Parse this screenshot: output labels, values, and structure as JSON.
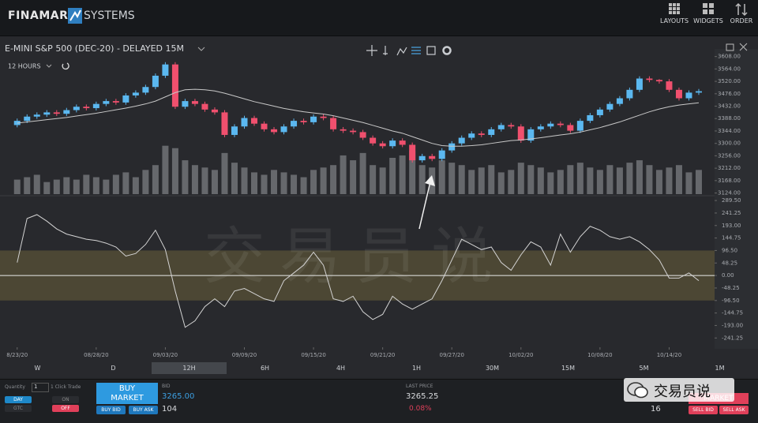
{
  "header": {
    "brand": "FINAMARK",
    "brand2": "SYSTEMS",
    "menu": [
      "LAYOUTS",
      "WIDGETS",
      "ORDER"
    ]
  },
  "chart_header": {
    "interval": "12 HOURS"
  },
  "watermark": "交易员说",
  "chart_data": [
    {
      "type": "candlestick",
      "title": "E-MINI S&P 500 (DEC-20) - DELAYED 15M",
      "up_color": "#5bb8f0",
      "down_color": "#f0506e",
      "volume_color": "#66686c",
      "ma_color": "#c8c8c8",
      "xlim": [
        -0.3,
        70.6
      ],
      "ylim": [
        3120,
        3635
      ],
      "vlim": [
        0,
        300
      ],
      "yticks": [
        {
          "value": 3608,
          "label": "3608.00"
        },
        {
          "value": 3564,
          "label": "3564.00"
        },
        {
          "value": 3520,
          "label": "3520.00"
        },
        {
          "value": 3476,
          "label": "3476.00"
        },
        {
          "value": 3432,
          "label": "3432.00"
        },
        {
          "value": 3388,
          "label": "3388.00"
        },
        {
          "value": 3344,
          "label": "3344.00"
        },
        {
          "value": 3300,
          "label": "3300.00"
        },
        {
          "value": 3256,
          "label": "3256.00"
        },
        {
          "value": 3212,
          "label": "3212.00"
        },
        {
          "value": 3168,
          "label": "3168.00"
        },
        {
          "value": 3124,
          "label": "3124.00"
        }
      ],
      "open": [
        3365,
        3380,
        3395,
        3402,
        3410,
        3405,
        3418,
        3430,
        3425,
        3440,
        3450,
        3445,
        3470,
        3480,
        3500,
        3540,
        3580,
        3430,
        3450,
        3440,
        3420,
        3410,
        3330,
        3360,
        3390,
        3370,
        3350,
        3340,
        3360,
        3380,
        3375,
        3395,
        3390,
        3350,
        3345,
        3340,
        3320,
        3300,
        3290,
        3310,
        3295,
        3240,
        3255,
        3245,
        3275,
        3300,
        3320,
        3335,
        3330,
        3350,
        3365,
        3360,
        3310,
        3350,
        3360,
        3370,
        3365,
        3345,
        3380,
        3400,
        3420,
        3440,
        3460,
        3490,
        3530,
        3525,
        3520,
        3490,
        3460,
        3480
      ],
      "high": [
        3388,
        3403,
        3410,
        3418,
        3418,
        3426,
        3438,
        3438,
        3448,
        3458,
        3458,
        3478,
        3488,
        3508,
        3548,
        3588,
        3588,
        3458,
        3458,
        3448,
        3428,
        3418,
        3368,
        3398,
        3398,
        3378,
        3358,
        3368,
        3388,
        3388,
        3403,
        3403,
        3398,
        3358,
        3353,
        3348,
        3328,
        3308,
        3318,
        3318,
        3303,
        3263,
        3263,
        3283,
        3308,
        3328,
        3343,
        3343,
        3358,
        3373,
        3373,
        3368,
        3358,
        3368,
        3378,
        3378,
        3373,
        3388,
        3408,
        3428,
        3448,
        3468,
        3498,
        3538,
        3538,
        3528,
        3528,
        3498,
        3488,
        3493
      ],
      "low": [
        3357,
        3372,
        3387,
        3394,
        3397,
        3397,
        3410,
        3417,
        3417,
        3432,
        3437,
        3437,
        3462,
        3472,
        3492,
        3532,
        3422,
        3422,
        3432,
        3412,
        3402,
        3322,
        3322,
        3352,
        3362,
        3342,
        3332,
        3332,
        3352,
        3367,
        3367,
        3382,
        3342,
        3337,
        3332,
        3312,
        3292,
        3282,
        3282,
        3287,
        3232,
        3232,
        3237,
        3237,
        3267,
        3292,
        3312,
        3322,
        3322,
        3342,
        3352,
        3302,
        3302,
        3342,
        3352,
        3357,
        3337,
        3337,
        3372,
        3392,
        3412,
        3432,
        3452,
        3482,
        3517,
        3512,
        3482,
        3452,
        3452,
        3472
      ],
      "close": [
        3380,
        3395,
        3402,
        3410,
        3405,
        3418,
        3430,
        3425,
        3440,
        3450,
        3445,
        3470,
        3480,
        3500,
        3540,
        3580,
        3430,
        3450,
        3440,
        3420,
        3410,
        3330,
        3360,
        3390,
        3370,
        3350,
        3340,
        3360,
        3380,
        3375,
        3395,
        3390,
        3350,
        3345,
        3340,
        3320,
        3300,
        3290,
        3310,
        3295,
        3240,
        3255,
        3245,
        3275,
        3300,
        3320,
        3335,
        3330,
        3350,
        3365,
        3360,
        3310,
        3350,
        3360,
        3370,
        3365,
        3345,
        3380,
        3400,
        3420,
        3440,
        3460,
        3490,
        3530,
        3525,
        3520,
        3490,
        3460,
        3480,
        3485
      ],
      "volume": [
        30,
        35,
        40,
        25,
        30,
        35,
        30,
        40,
        35,
        30,
        40,
        45,
        35,
        50,
        60,
        100,
        95,
        70,
        60,
        55,
        50,
        85,
        65,
        55,
        45,
        40,
        50,
        45,
        40,
        35,
        50,
        55,
        60,
        80,
        70,
        85,
        60,
        55,
        75,
        80,
        90,
        60,
        55,
        70,
        65,
        60,
        50,
        55,
        60,
        45,
        50,
        65,
        60,
        55,
        45,
        50,
        60,
        65,
        55,
        50,
        60,
        55,
        65,
        70,
        60,
        50,
        55,
        60,
        45,
        50
      ],
      "ma": [
        3372,
        3376,
        3380,
        3384,
        3388,
        3392,
        3397,
        3402,
        3407,
        3413,
        3419,
        3425,
        3432,
        3440,
        3450,
        3465,
        3480,
        3490,
        3492,
        3490,
        3486,
        3478,
        3468,
        3458,
        3448,
        3440,
        3432,
        3424,
        3418,
        3412,
        3408,
        3404,
        3398,
        3390,
        3382,
        3374,
        3364,
        3354,
        3344,
        3336,
        3324,
        3312,
        3300,
        3292,
        3290,
        3290,
        3292,
        3295,
        3300,
        3305,
        3310,
        3312,
        3316,
        3320,
        3325,
        3330,
        3334,
        3340,
        3348,
        3356,
        3366,
        3376,
        3388,
        3400,
        3412,
        3422,
        3430,
        3436,
        3440,
        3444
      ]
    },
    {
      "type": "line",
      "color": "#d4d4d4",
      "band_color": "#5b5438",
      "baseline_color": "#e8e8e8",
      "xlim": [
        -0.3,
        70.6
      ],
      "ylim": [
        -277,
        302
      ],
      "band": [
        -96.5,
        96.5
      ],
      "baseline": 0,
      "yticks": [
        {
          "value": 289.5,
          "label": "289.50"
        },
        241.25,
        {
          "value": 193,
          "label": "193.00"
        },
        144.75,
        {
          "value": 96.5,
          "label": "96.50"
        },
        48.25,
        {
          "value": 0,
          "label": "0.00"
        },
        -48.25,
        {
          "value": -96.5,
          "label": "-96.50"
        },
        -144.75,
        {
          "value": -193,
          "label": "-193.00"
        },
        -241.25
      ],
      "xticks": [
        {
          "value": 0,
          "label": "8/23/20"
        },
        {
          "value": 8,
          "label": "08/28/20"
        },
        {
          "value": 15,
          "label": "09/03/20"
        },
        {
          "value": 23,
          "label": "09/09/20"
        },
        {
          "value": 30,
          "label": "09/15/20"
        },
        {
          "value": 37,
          "label": "09/21/20"
        },
        {
          "value": 44,
          "label": "09/27/20"
        },
        {
          "value": 51,
          "label": "10/02/20"
        },
        {
          "value": 59,
          "label": "10/08/20"
        },
        {
          "value": 66,
          "label": "10/14/20"
        }
      ],
      "values": [
        50,
        220,
        235,
        210,
        180,
        160,
        150,
        140,
        135,
        125,
        110,
        75,
        85,
        120,
        175,
        100,
        -60,
        -200,
        -175,
        -120,
        -90,
        -120,
        -60,
        -50,
        -70,
        -90,
        -100,
        -20,
        10,
        40,
        90,
        40,
        -90,
        -100,
        -80,
        -140,
        -170,
        -150,
        -80,
        -110,
        -130,
        -110,
        -90,
        -20,
        60,
        140,
        120,
        100,
        110,
        50,
        20,
        80,
        130,
        110,
        40,
        160,
        90,
        150,
        190,
        175,
        150,
        140,
        150,
        130,
        100,
        60,
        -10,
        -10,
        10,
        -20
      ]
    }
  ],
  "timeframes": {
    "items": [
      "W",
      "D",
      "12H",
      "6H",
      "4H",
      "1H",
      "30M",
      "15M",
      "5M",
      "1M"
    ],
    "selected": "12H"
  },
  "order_panel": {
    "quantity_label": "Quantity",
    "quantity": "1",
    "one_click_label": "1 Click Trade",
    "on": "ON",
    "off": "OFF",
    "day": "DAY",
    "gtc": "GTC",
    "buy_line1": "BUY",
    "buy_line2": "MARKET",
    "buy_bid": "BUY BID",
    "buy_ask": "BUY ASK",
    "bid_label": "BID",
    "bid": "3265.00",
    "bid_size": "104",
    "last_label": "LAST PRICE",
    "last": "3265.25",
    "change": "0.08%",
    "sell_button": "MARKET",
    "ask_size": "16",
    "sell_bid": "SELL BID",
    "sell_ask": "SELL ASK",
    "badge": "交易员说"
  }
}
